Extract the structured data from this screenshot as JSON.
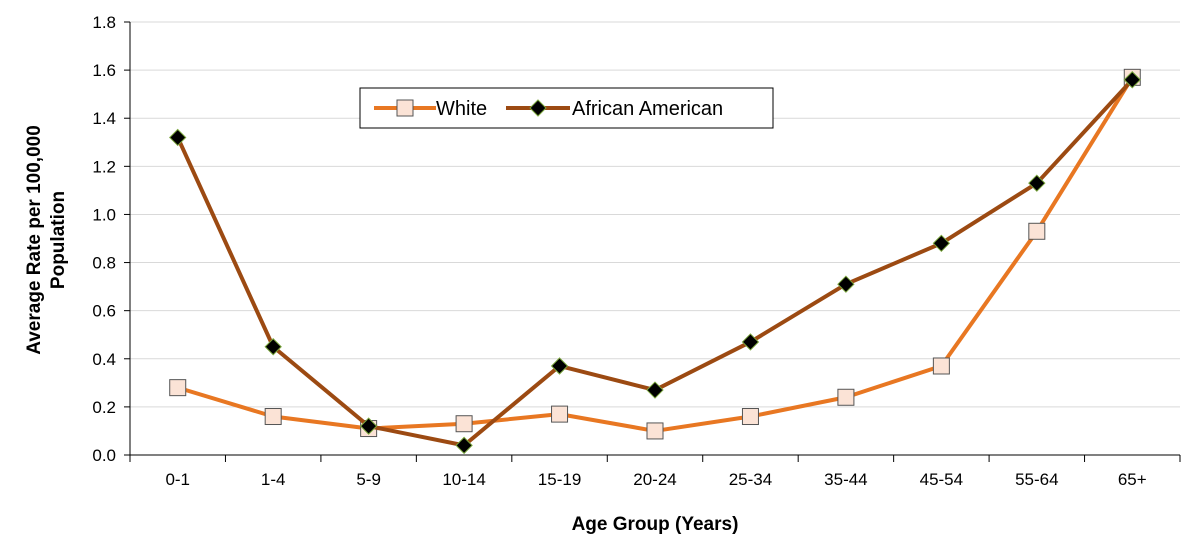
{
  "chart_data": {
    "type": "line",
    "xlabel": "Age Group (Years)",
    "ylabel_lines": [
      "Average Rate per 100,000",
      "Population"
    ],
    "ylim": [
      0,
      1.8
    ],
    "y_ticks": [
      0.0,
      0.2,
      0.4,
      0.6,
      0.8,
      1.0,
      1.2,
      1.4,
      1.6,
      1.8
    ],
    "grid": "horizontal",
    "legend_position": "top-center",
    "categories": [
      "0-1",
      "1-4",
      "5-9",
      "10-14",
      "15-19",
      "20-24",
      "25-34",
      "35-44",
      "45-54",
      "55-64",
      "65+"
    ],
    "series": [
      {
        "name": "White",
        "color": "#E87722",
        "marker": "square",
        "marker_fill": "#FBE3D6",
        "values": [
          0.28,
          0.16,
          0.11,
          0.13,
          0.17,
          0.1,
          0.16,
          0.24,
          0.37,
          0.93,
          1.57
        ]
      },
      {
        "name": "African American",
        "color": "#9C4A12",
        "marker": "diamond",
        "marker_fill": "#000000",
        "values": [
          1.32,
          0.45,
          0.12,
          0.04,
          0.37,
          0.27,
          0.47,
          0.71,
          0.88,
          1.13,
          1.56
        ]
      }
    ]
  }
}
